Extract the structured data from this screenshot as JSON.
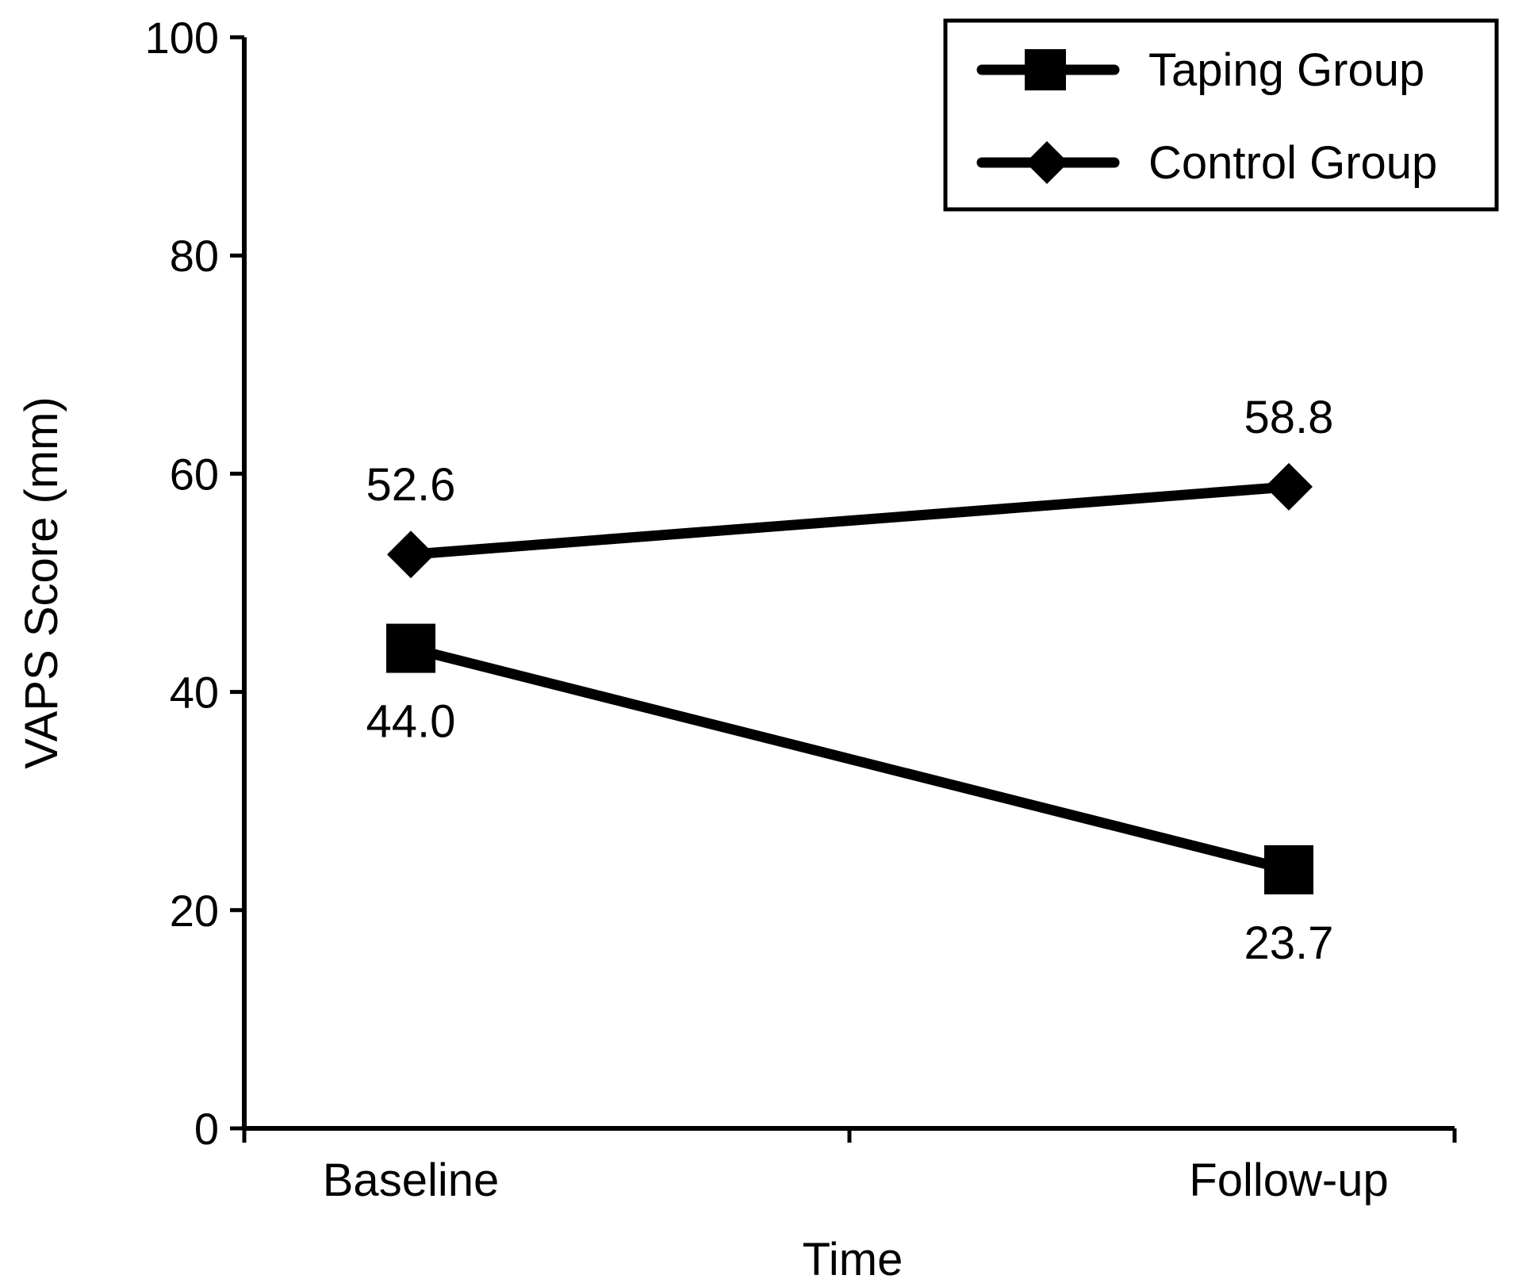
{
  "chart_data": {
    "type": "line",
    "title": "",
    "xlabel": "Time",
    "ylabel": "VAPS Score (mm)",
    "categories": [
      "Baseline",
      "Follow-up"
    ],
    "ylim": [
      0,
      100
    ],
    "yticks": [
      "0",
      "20",
      "40",
      "60",
      "80",
      "100"
    ],
    "grid": false,
    "legend_position": "top-right",
    "series": [
      {
        "name": "Taping Group",
        "marker": "square",
        "color": "#000000",
        "values": [
          44.0,
          23.7
        ],
        "labels": [
          "44.0",
          "23.7"
        ]
      },
      {
        "name": "Control Group",
        "marker": "diamond",
        "color": "#000000",
        "values": [
          52.6,
          58.8
        ],
        "labels": [
          "52.6",
          "58.8"
        ]
      }
    ]
  }
}
